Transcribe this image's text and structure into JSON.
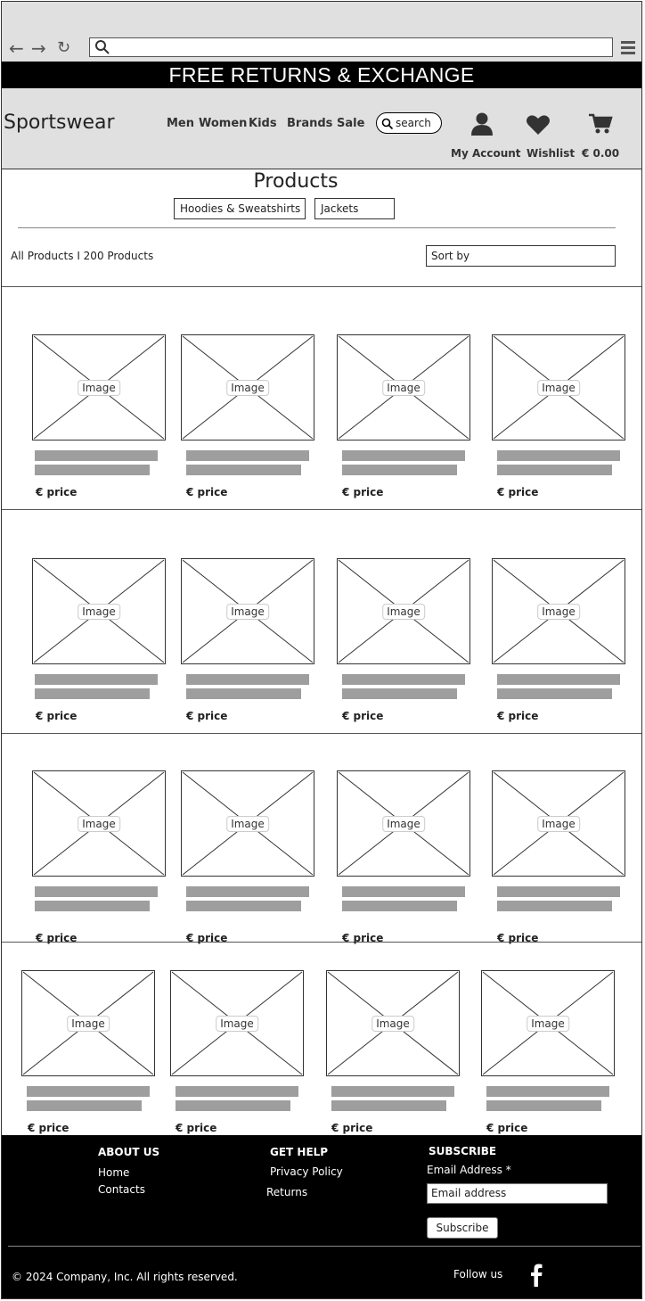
{
  "banner": "FREE RETURNS & EXCHANGE",
  "header": {
    "logo": "Sportswear",
    "nav": [
      "Men",
      "Women",
      "Kids",
      "Brands",
      "Sale"
    ],
    "search_label": "search",
    "account_label": "My Account",
    "wishlist_label": "Wishlist",
    "cart_total": "€ 0.00"
  },
  "products": {
    "title": "Products",
    "filters": [
      "Hoodies & Sweatshirts",
      "Jackets"
    ],
    "count": "All Products I 200 Products",
    "sort_placeholder": "Sort by"
  },
  "card": {
    "image_label": "Image",
    "price": "€ price"
  },
  "footer": {
    "about_heading": "ABOUT US",
    "about_links": [
      "Home",
      "Contacts"
    ],
    "help_heading": "GET HELP",
    "help_links": [
      "Privacy Policy",
      "Returns"
    ],
    "subscribe_heading": "SUBSCRIBE",
    "email_label": "Email Address *",
    "email_placeholder": "Email address",
    "subscribe_button": "Subscribe",
    "copyright": "© 2024 Company, Inc. All rights reserved.",
    "follow_label": "Follow us"
  }
}
